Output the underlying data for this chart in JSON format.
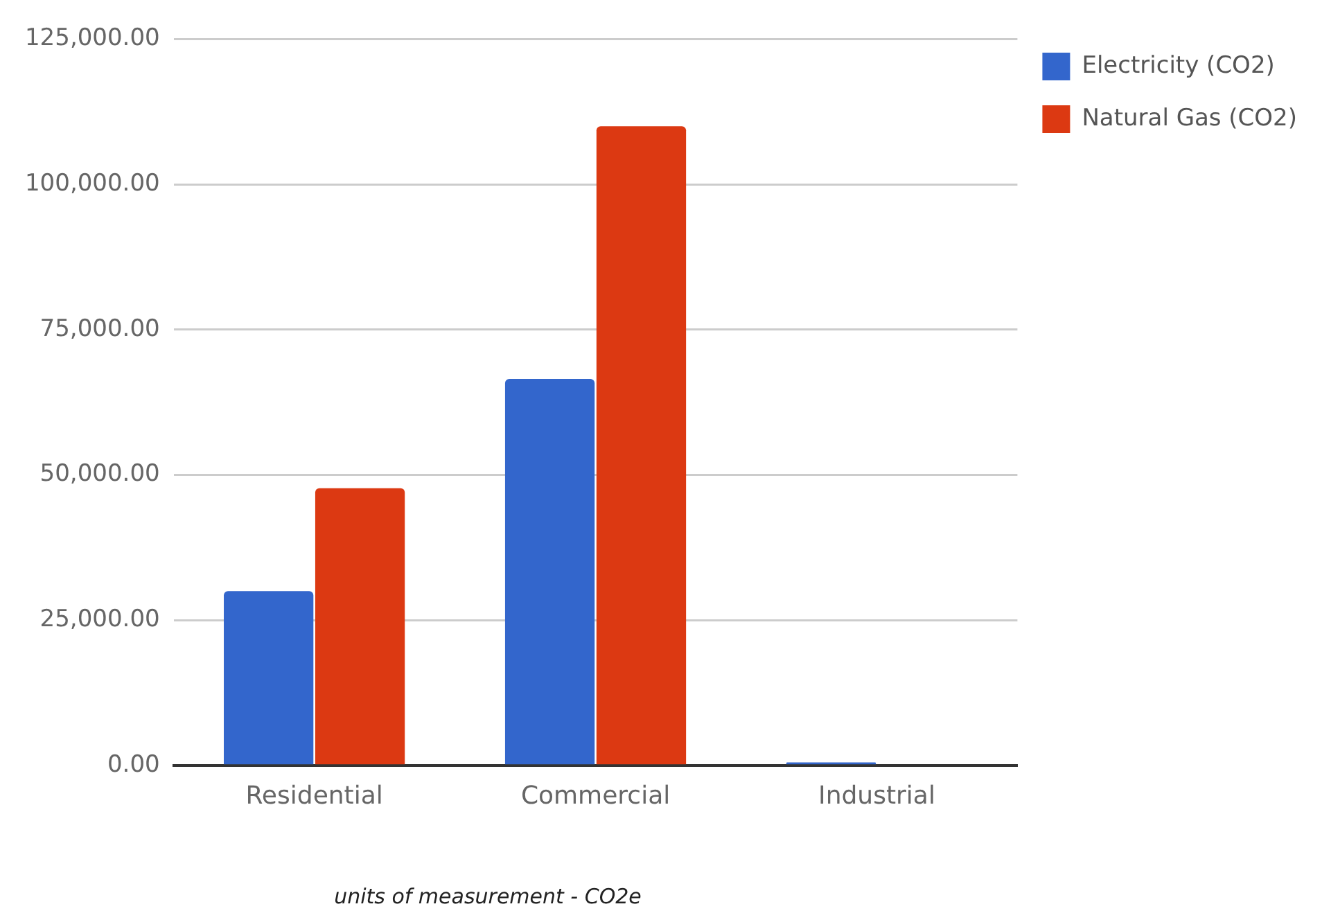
{
  "chart_data": {
    "type": "bar",
    "categories": [
      "Residential",
      "Commercial",
      "Industrial"
    ],
    "series": [
      {
        "name": "Electricity (CO2)",
        "color": "#3366cc",
        "values": [
          30000,
          66500,
          500
        ]
      },
      {
        "name": "Natural Gas (CO2)",
        "color": "#dc3912",
        "values": [
          47700,
          110000,
          0
        ]
      }
    ],
    "ylim": [
      0,
      125000
    ],
    "yticks": [
      {
        "value": 0,
        "label": "0.00"
      },
      {
        "value": 25000,
        "label": "25,000.00"
      },
      {
        "value": 50000,
        "label": "50,000.00"
      },
      {
        "value": 75000,
        "label": "75,000.00"
      },
      {
        "value": 100000,
        "label": "100,000.00"
      },
      {
        "value": 125000,
        "label": "125,000.00"
      }
    ],
    "grid": "y",
    "legend": "top right",
    "annotations": [
      "units of measurement - CO2e"
    ]
  }
}
